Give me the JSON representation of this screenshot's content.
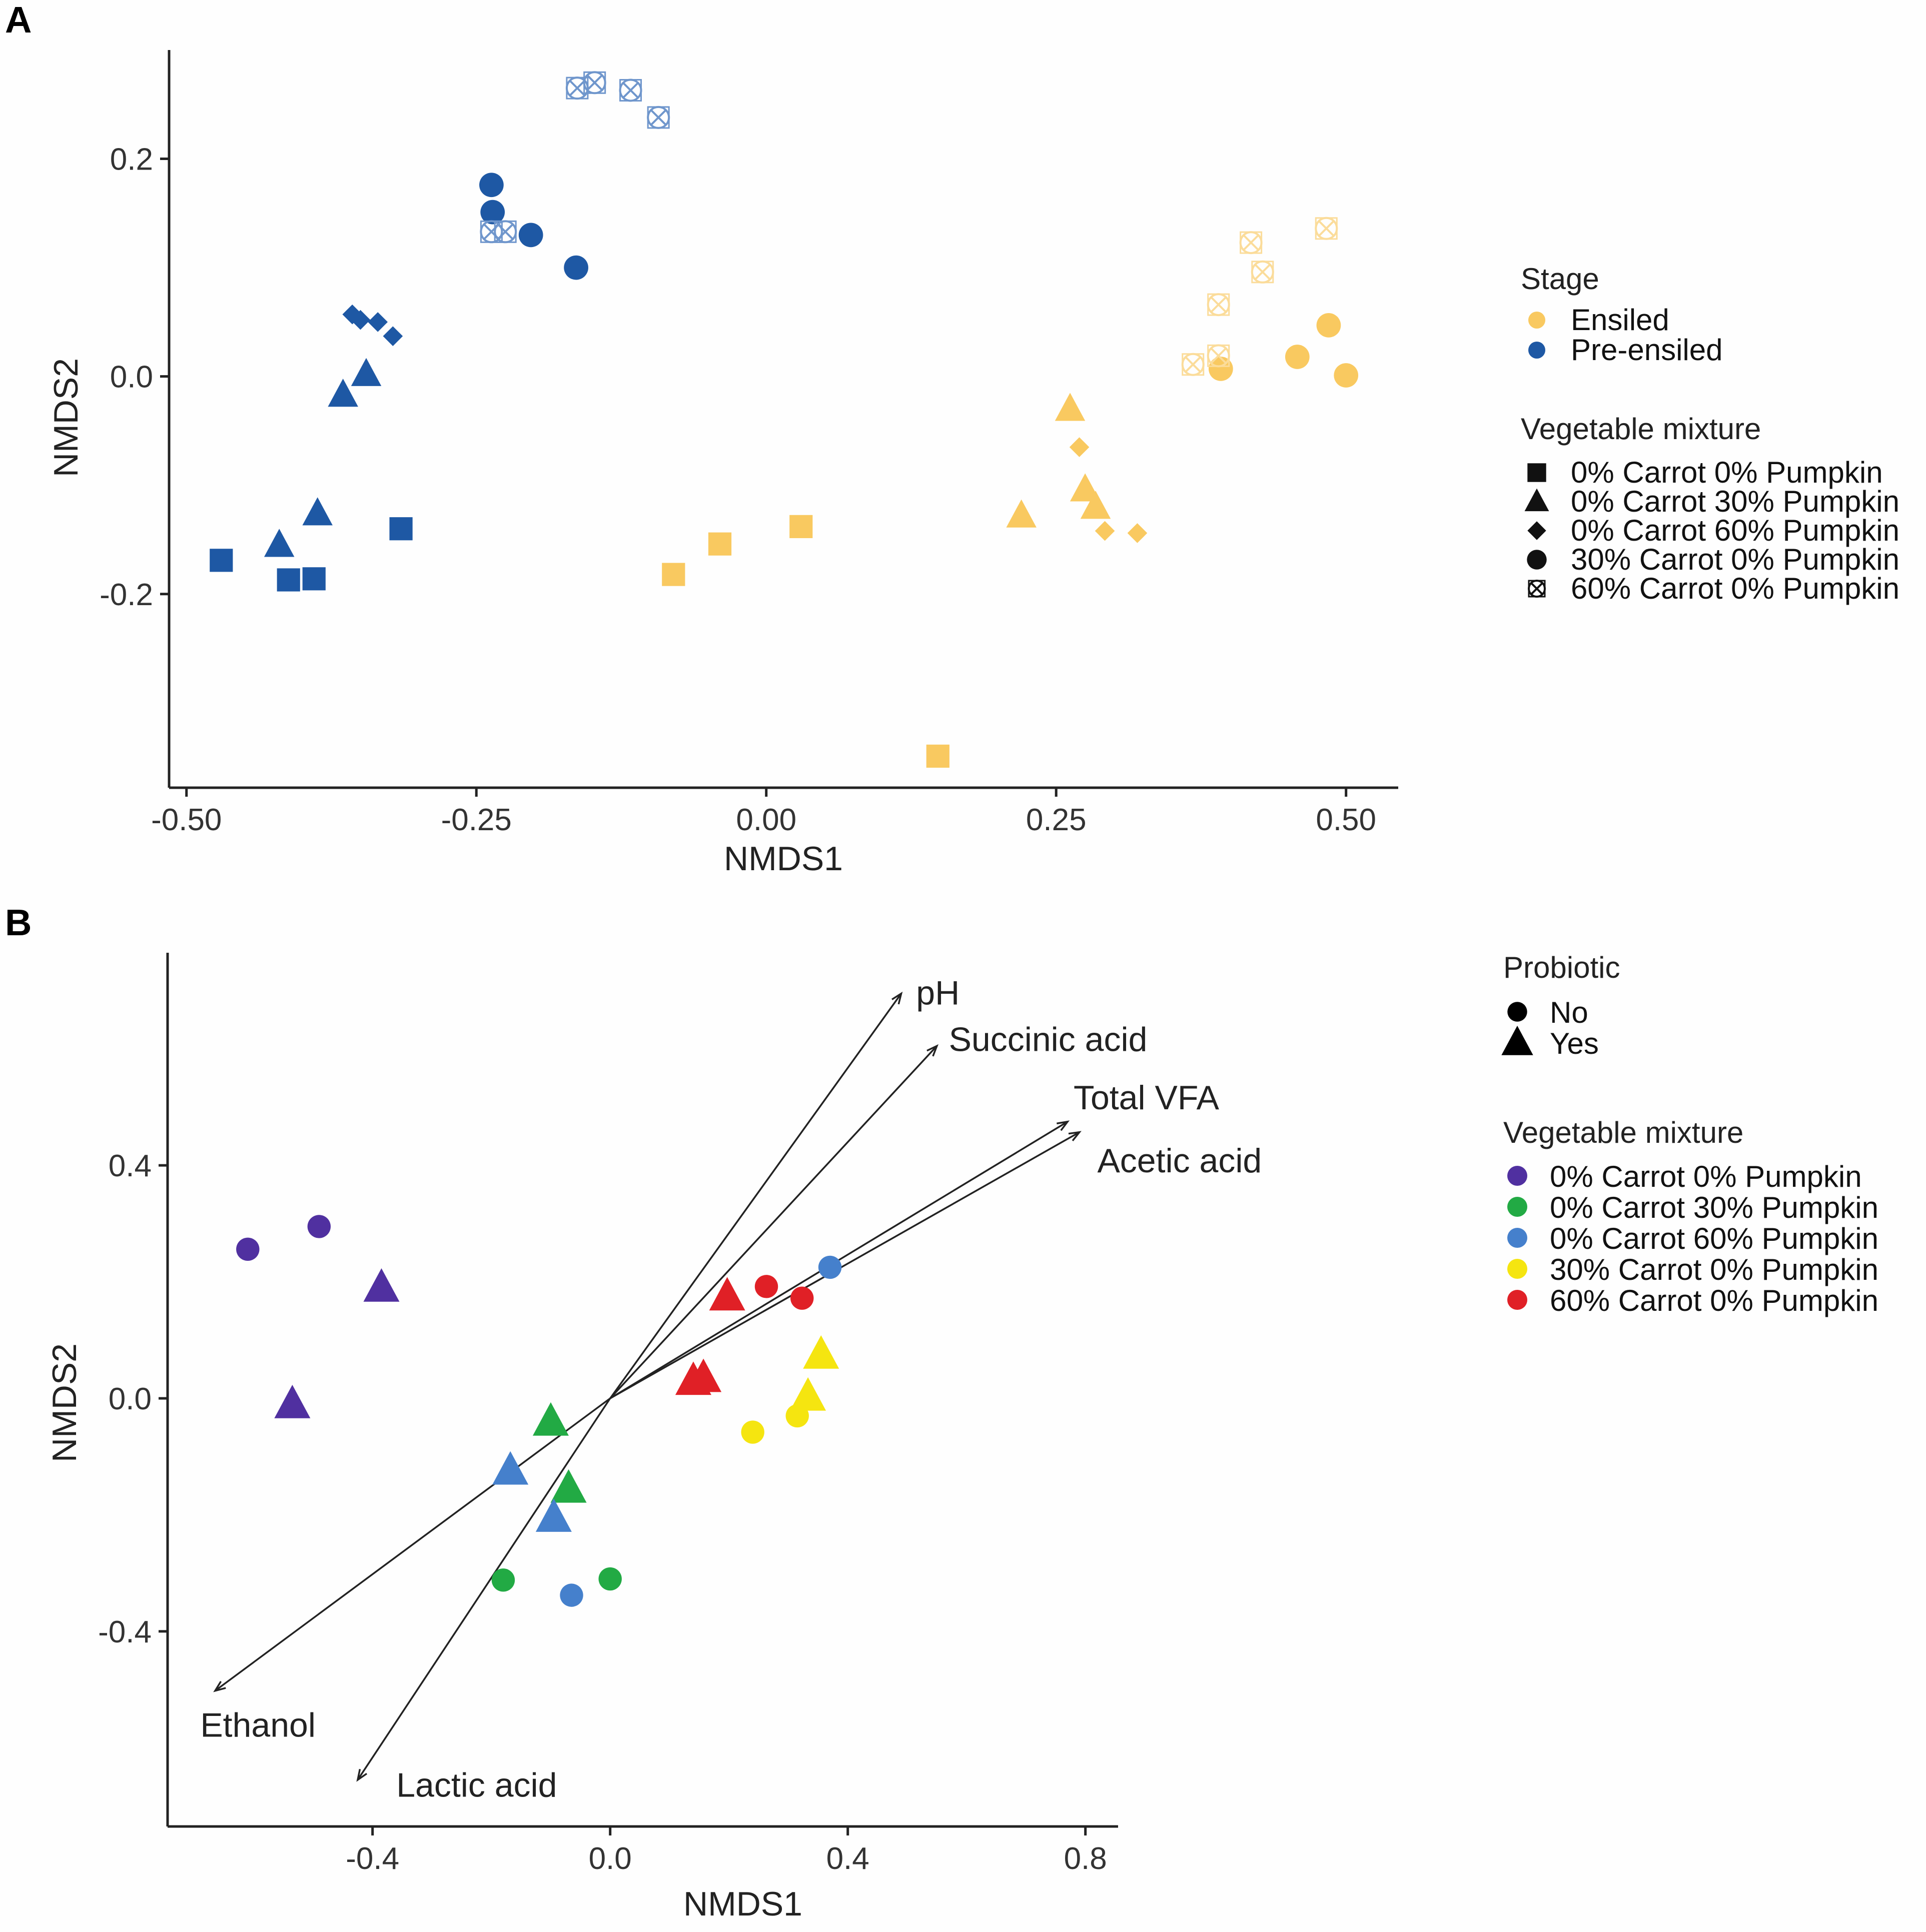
{
  "colors": {
    "ensiled": "#f9c960",
    "pre_ensiled": "#1e58a4",
    "pre_ensiled_light": "#6f96cc",
    "ensiled_light": "#fbdc9a",
    "mix0": "#5030a0",
    "mix30p": "#22aa44",
    "mix60p": "#4580cc",
    "mix30c": "#f5e510",
    "mix60c": "#e02026"
  },
  "panel_a": {
    "label": "A",
    "legend": {
      "stage_title": "Stage",
      "stage_items": [
        "Ensiled",
        "Pre-ensiled"
      ],
      "mix_title": "Vegetable mixture",
      "mix_items": [
        "0% Carrot 0% Pumpkin",
        "0% Carrot 30% Pumpkin",
        "0% Carrot 60% Pumpkin",
        "30% Carrot 0% Pumpkin",
        "60% Carrot 0% Pumpkin"
      ],
      "mix_shapes": [
        "square",
        "triangle",
        "diamond",
        "circle",
        "xcircle"
      ]
    }
  },
  "panel_b": {
    "label": "B",
    "legend": {
      "probiotic_title": "Probiotic",
      "probiotic_items": [
        "No",
        "Yes"
      ],
      "mix_title": "Vegetable mixture",
      "mix_items": [
        "0% Carrot 0% Pumpkin",
        "0% Carrot 30% Pumpkin",
        "0% Carrot 60% Pumpkin",
        "30% Carrot 0% Pumpkin",
        "60% Carrot 0% Pumpkin"
      ],
      "mix_color_keys": [
        "mix0",
        "mix30p",
        "mix60p",
        "mix30c",
        "mix60c"
      ]
    }
  },
  "chart_data": [
    {
      "type": "scatter",
      "title": "",
      "xlabel": "NMDS1",
      "ylabel": "NMDS2",
      "xlim": [
        -0.515,
        0.545
      ],
      "ylim": [
        -0.378,
        0.3
      ],
      "xticks": [
        -0.5,
        -0.25,
        0.0,
        0.25,
        0.5
      ],
      "xtick_labels": [
        "-0.50",
        "-0.25",
        "0.00",
        "0.25",
        "0.50"
      ],
      "yticks": [
        -0.2,
        0.0,
        0.2
      ],
      "ytick_labels": [
        "-0.2",
        "0.0",
        "0.2"
      ],
      "series": [
        {
          "name": "Pre-ensiled 0% Carrot 0% Pumpkin",
          "stage": "Pre-ensiled",
          "shape": "square",
          "points": [
            [
              -0.47,
              -0.169
            ],
            [
              -0.412,
              -0.187
            ],
            [
              -0.39,
              -0.186
            ],
            [
              -0.315,
              -0.14
            ]
          ]
        },
        {
          "name": "Pre-ensiled 0% Carrot 30% Pumpkin",
          "stage": "Pre-ensiled",
          "shape": "triangle",
          "points": [
            [
              -0.42,
              -0.155
            ],
            [
              -0.387,
              -0.126
            ],
            [
              -0.365,
              -0.017
            ],
            [
              -0.345,
              0.002
            ]
          ]
        },
        {
          "name": "Pre-ensiled 0% Carrot 60% Pumpkin",
          "stage": "Pre-ensiled",
          "shape": "diamond",
          "points": [
            [
              -0.357,
              0.057
            ],
            [
              -0.35,
              0.052
            ],
            [
              -0.335,
              0.05
            ],
            [
              -0.322,
              0.037
            ]
          ]
        },
        {
          "name": "Pre-ensiled 30% Carrot 0% Pumpkin",
          "stage": "Pre-ensiled",
          "shape": "circle",
          "points": [
            [
              -0.237,
              0.176
            ],
            [
              -0.236,
              0.151
            ],
            [
              -0.203,
              0.13
            ],
            [
              -0.164,
              0.1
            ]
          ]
        },
        {
          "name": "Pre-ensiled 60% Carrot 0% Pumpkin",
          "stage": "Pre-ensiled",
          "shape": "xcircle",
          "points": [
            [
              -0.163,
              0.265
            ],
            [
              -0.148,
              0.27
            ],
            [
              -0.117,
              0.263
            ],
            [
              -0.093,
              0.238
            ],
            [
              -0.237,
              0.133
            ],
            [
              -0.225,
              0.133
            ]
          ]
        },
        {
          "name": "Ensiled 0% Carrot 0% Pumpkin",
          "stage": "Ensiled",
          "shape": "square",
          "points": [
            [
              -0.08,
              -0.182
            ],
            [
              -0.04,
              -0.154
            ],
            [
              0.03,
              -0.138
            ],
            [
              0.148,
              -0.349
            ]
          ]
        },
        {
          "name": "Ensiled 0% Carrot 30% Pumpkin",
          "stage": "Ensiled",
          "shape": "triangle",
          "points": [
            [
              0.262,
              -0.03
            ],
            [
              0.275,
              -0.104
            ],
            [
              0.284,
              -0.12
            ],
            [
              0.22,
              -0.128
            ]
          ]
        },
        {
          "name": "Ensiled 0% Carrot 60% Pumpkin",
          "stage": "Ensiled",
          "shape": "diamond",
          "points": [
            [
              0.27,
              -0.065
            ],
            [
              0.292,
              -0.142
            ],
            [
              0.32,
              -0.144
            ]
          ]
        },
        {
          "name": "Ensiled 30% Carrot 0% Pumpkin",
          "stage": "Ensiled",
          "shape": "circle",
          "points": [
            [
              0.392,
              0.007
            ],
            [
              0.458,
              0.018
            ],
            [
              0.485,
              0.047
            ],
            [
              0.5,
              0.001
            ]
          ]
        },
        {
          "name": "Ensiled 60% Carrot 0% Pumpkin",
          "stage": "Ensiled",
          "shape": "xcircle",
          "points": [
            [
              0.368,
              0.011
            ],
            [
              0.39,
              0.019
            ],
            [
              0.39,
              0.066
            ],
            [
              0.418,
              0.123
            ],
            [
              0.428,
              0.096
            ],
            [
              0.483,
              0.136
            ]
          ]
        }
      ]
    },
    {
      "type": "scatter",
      "title": "",
      "xlabel": "NMDS1",
      "ylabel": "NMDS2",
      "xlim": [
        -0.745,
        0.855
      ],
      "ylim": [
        -0.735,
        0.765
      ],
      "xticks": [
        -0.4,
        0.0,
        0.4,
        0.8
      ],
      "xtick_labels": [
        "-0.4",
        "0.0",
        "0.4",
        "0.8"
      ],
      "yticks": [
        -0.4,
        0.0,
        0.4
      ],
      "ytick_labels": [
        "-0.4",
        "0.0",
        "0.4"
      ],
      "series": [
        {
          "name": "0% Carrot 0% Pumpkin",
          "color_key": "mix0",
          "points": [
            {
              "x": -0.61,
              "y": 0.256,
              "probiotic": "No"
            },
            {
              "x": -0.49,
              "y": 0.295,
              "probiotic": "No"
            },
            {
              "x": -0.385,
              "y": 0.19,
              "probiotic": "Yes"
            },
            {
              "x": -0.535,
              "y": -0.01,
              "probiotic": "Yes"
            }
          ]
        },
        {
          "name": "0% Carrot 30% Pumpkin",
          "color_key": "mix30p",
          "points": [
            {
              "x": -0.1,
              "y": -0.04,
              "probiotic": "Yes"
            },
            {
              "x": -0.07,
              "y": -0.155,
              "probiotic": "Yes"
            },
            {
              "x": -0.18,
              "y": -0.312,
              "probiotic": "No"
            },
            {
              "x": 0.0,
              "y": -0.31,
              "probiotic": "No"
            }
          ]
        },
        {
          "name": "0% Carrot 60% Pumpkin",
          "color_key": "mix60p",
          "points": [
            {
              "x": -0.168,
              "y": -0.124,
              "probiotic": "Yes"
            },
            {
              "x": -0.095,
              "y": -0.205,
              "probiotic": "Yes"
            },
            {
              "x": -0.065,
              "y": -0.338,
              "probiotic": "No"
            },
            {
              "x": 0.37,
              "y": 0.225,
              "probiotic": "No"
            }
          ]
        },
        {
          "name": "30% Carrot 0% Pumpkin",
          "color_key": "mix30c",
          "points": [
            {
              "x": 0.355,
              "y": 0.075,
              "probiotic": "Yes"
            },
            {
              "x": 0.333,
              "y": 0.003,
              "probiotic": "Yes"
            },
            {
              "x": 0.24,
              "y": -0.058,
              "probiotic": "No"
            },
            {
              "x": 0.315,
              "y": -0.03,
              "probiotic": "No"
            }
          ]
        },
        {
          "name": "60% Carrot 0% Pumpkin",
          "color_key": "mix60c",
          "points": [
            {
              "x": 0.197,
              "y": 0.175,
              "probiotic": "Yes"
            },
            {
              "x": 0.263,
              "y": 0.192,
              "probiotic": "No"
            },
            {
              "x": 0.323,
              "y": 0.172,
              "probiotic": "No"
            },
            {
              "x": 0.14,
              "y": 0.03,
              "probiotic": "Yes"
            },
            {
              "x": 0.157,
              "y": 0.035,
              "probiotic": "Yes"
            }
          ]
        }
      ],
      "vectors": [
        {
          "name": "pH",
          "x": 0.49,
          "y": 0.695,
          "label_anchor": "start",
          "label_dx": 0.025,
          "label_dy": 0.0
        },
        {
          "name": "Succinic acid",
          "x": 0.55,
          "y": 0.605,
          "label_anchor": "start",
          "label_dx": 0.02,
          "label_dy": 0.01
        },
        {
          "name": "Total VFA",
          "x": 0.77,
          "y": 0.475,
          "label_anchor": "start",
          "label_dx": 0.01,
          "label_dy": 0.04
        },
        {
          "name": "Acetic acid",
          "x": 0.79,
          "y": 0.457,
          "label_anchor": "start",
          "label_dx": 0.03,
          "label_dy": -0.05
        },
        {
          "name": "Ethanol",
          "x": -0.665,
          "y": -0.502,
          "label_anchor": "start",
          "label_dx": -0.025,
          "label_dy": -0.06
        },
        {
          "name": "Lactic acid",
          "x": -0.425,
          "y": -0.655,
          "label_anchor": "start",
          "label_dx": 0.065,
          "label_dy": -0.01
        }
      ]
    }
  ]
}
